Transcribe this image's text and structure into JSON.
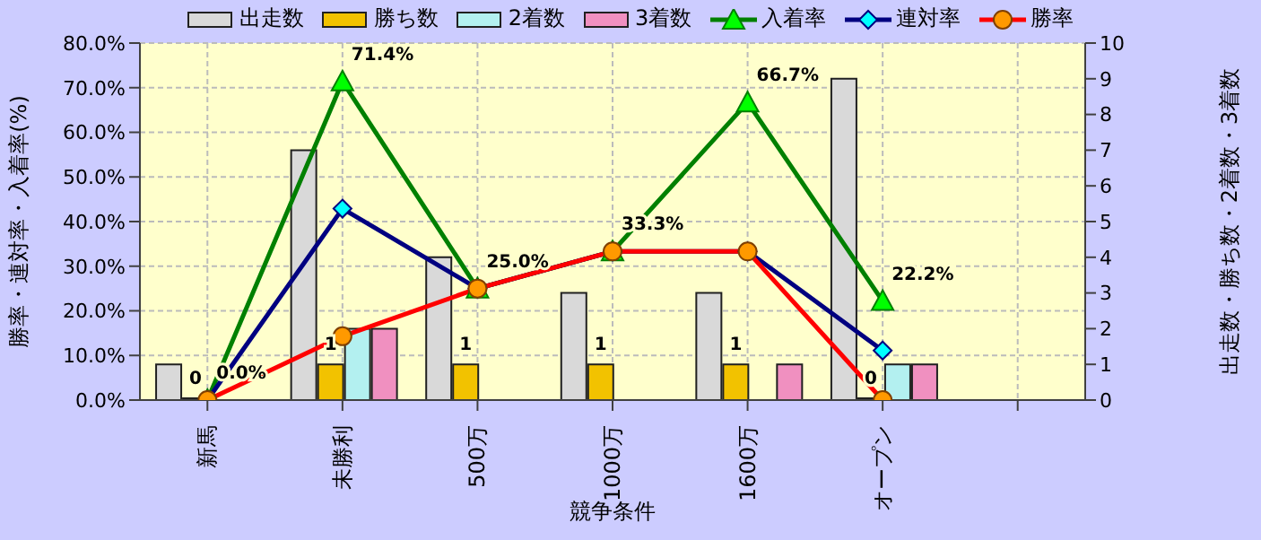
{
  "chart_data": {
    "type": "bar",
    "xlabel": "競争条件",
    "ylabel": "勝率・連対率・入着率(%)",
    "y2label": "出走数・勝ち数・2着数・3着数",
    "categories": [
      "新馬",
      "未勝利",
      "500万",
      "1000万",
      "1600万",
      "オープン",
      null
    ],
    "series": [
      {
        "name": "出走数",
        "axis": "y2",
        "color": "#d9d9d9",
        "values": [
          1,
          7,
          4,
          3,
          3,
          9,
          null
        ]
      },
      {
        "name": "勝ち数",
        "axis": "y2",
        "color": "#f2c200",
        "values": [
          0,
          1,
          1,
          1,
          1,
          0,
          null
        ],
        "value_labels": [
          "0",
          "1",
          "1",
          "1",
          "1",
          "0",
          null
        ]
      },
      {
        "name": "2着数",
        "axis": "y2",
        "color": "#b3f0f0",
        "values": [
          0,
          2,
          0,
          0,
          0,
          1,
          null
        ]
      },
      {
        "name": "3着数",
        "axis": "y2",
        "color": "#f090c0",
        "values": [
          0,
          2,
          0,
          0,
          1,
          1,
          null
        ]
      },
      {
        "name": "入着率",
        "type": "line",
        "axis": "y",
        "color": "#008000",
        "marker": "triangle",
        "values": [
          0,
          71.4,
          25,
          33.3,
          66.7,
          22.2,
          null
        ],
        "value_labels": [
          "0.0%",
          "71.4%",
          "25.0%",
          "33.3%",
          "66.7%",
          "22.2%",
          null
        ]
      },
      {
        "name": "連対率",
        "type": "line",
        "axis": "y",
        "color": "#000080",
        "marker": "diamond",
        "values": [
          0,
          42.9,
          25,
          33.3,
          33.3,
          11.1,
          null
        ]
      },
      {
        "name": "勝率",
        "type": "line",
        "axis": "y",
        "color": "#ff0000",
        "marker": "circle",
        "values": [
          0,
          14.3,
          25,
          33.3,
          33.3,
          0,
          null
        ]
      }
    ],
    "ylim": [
      0,
      80
    ],
    "yticks": [
      {
        "value": 0,
        "label": "0.0%"
      },
      {
        "value": 10,
        "label": "10.0%"
      },
      {
        "value": 20,
        "label": "20.0%"
      },
      {
        "value": 30,
        "label": "30.0%"
      },
      {
        "value": 40,
        "label": "40.0%"
      },
      {
        "value": 50,
        "label": "50.0%"
      },
      {
        "value": 60,
        "label": "60.0%"
      },
      {
        "value": 70,
        "label": "70.0%"
      },
      {
        "value": 80,
        "label": "80.0%"
      }
    ],
    "y2lim": [
      0,
      10
    ],
    "y2ticks": [
      0,
      1,
      2,
      3,
      4,
      5,
      6,
      7,
      8,
      9,
      10
    ],
    "grid": true,
    "legend": "top"
  }
}
